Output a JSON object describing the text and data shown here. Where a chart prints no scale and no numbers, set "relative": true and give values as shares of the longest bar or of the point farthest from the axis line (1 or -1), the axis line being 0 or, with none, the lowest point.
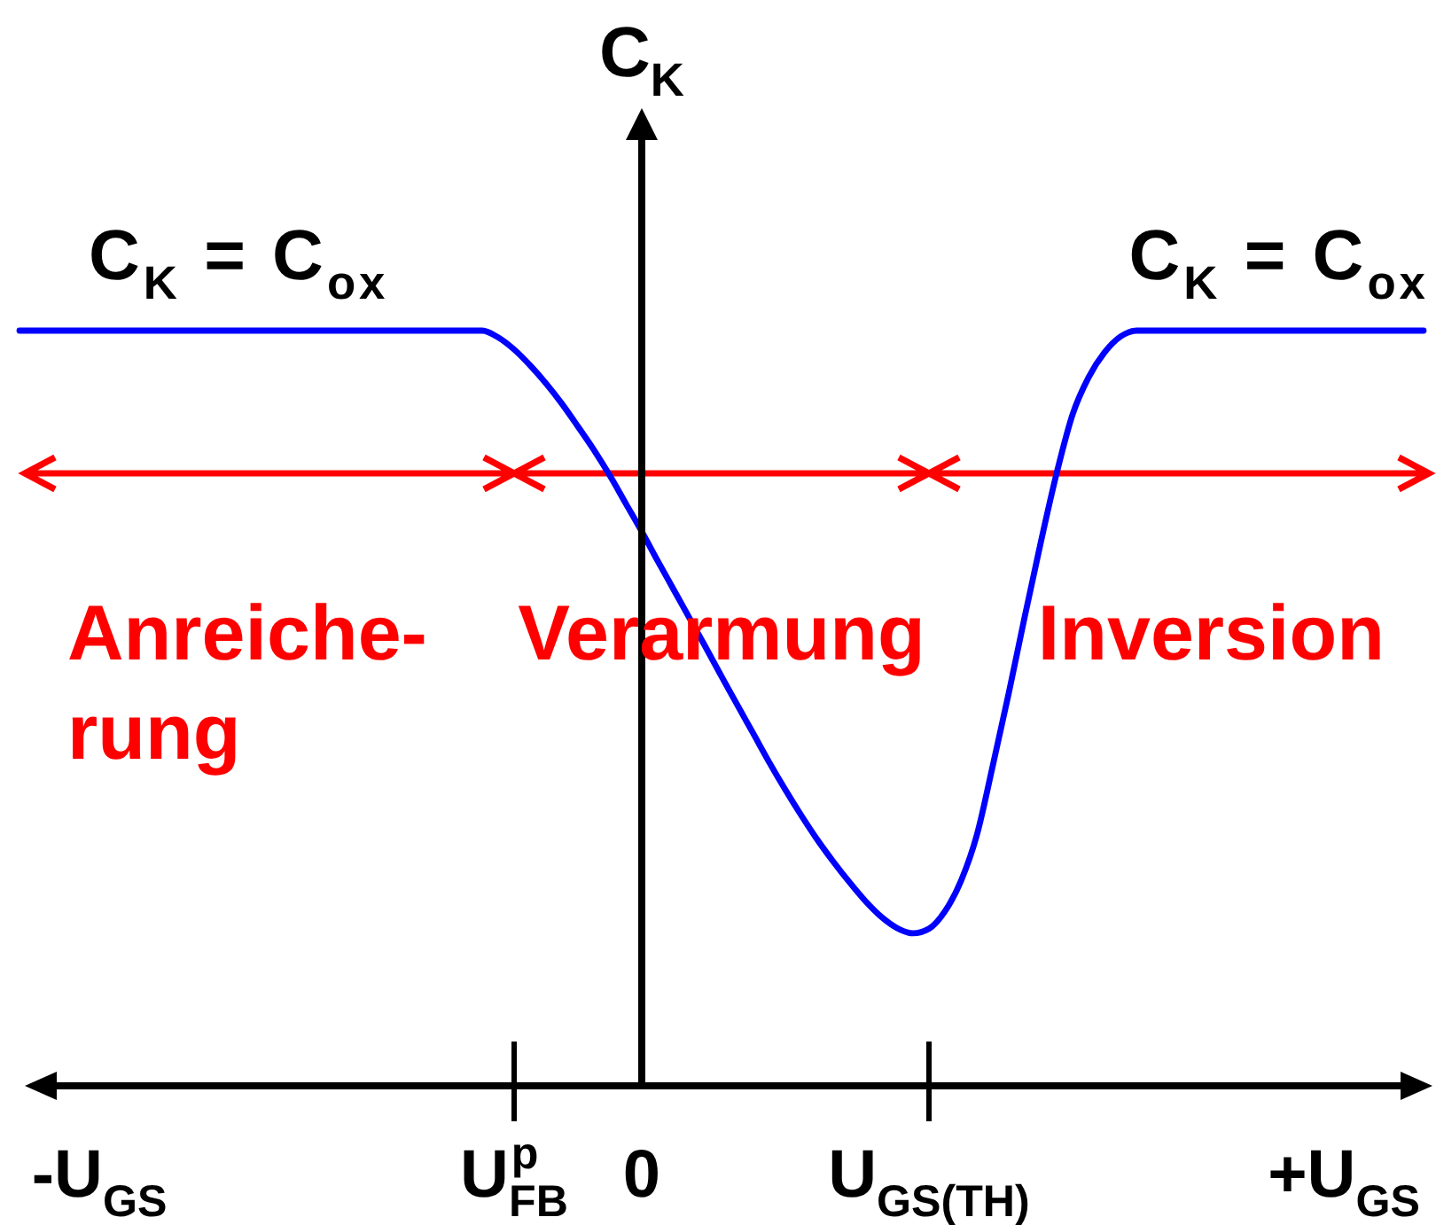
{
  "chart_data": {
    "type": "line",
    "ylabel": "C$_{K}$",
    "relative": true,
    "categories": [
      null,
      null,
      null,
      null,
      null,
      "-U$_{GS}$",
      null,
      null,
      null,
      null,
      null,
      null,
      null,
      null,
      null,
      null,
      null,
      null,
      null,
      null,
      null,
      null,
      null,
      null,
      null,
      null,
      null,
      null,
      null,
      null,
      null,
      "U$_{FB}$$^{p}$",
      null,
      null,
      null,
      null,
      null,
      null,
      null,
      "0",
      null,
      null,
      null,
      null,
      null,
      null,
      null,
      null,
      null,
      null,
      null,
      null,
      null,
      null,
      null,
      null,
      null,
      "U$_{GS(TH)}$",
      null,
      null,
      null,
      null,
      null,
      null,
      null,
      null,
      null,
      null,
      null,
      null,
      null,
      null,
      null,
      null,
      null,
      null,
      null,
      null,
      null,
      null,
      null,
      null,
      null,
      "+U$_{GS}$",
      null,
      null,
      null,
      null,
      null
    ],
    "values": [
      1,
      1,
      1,
      1,
      1,
      1,
      1,
      1,
      1,
      1,
      1,
      1,
      1,
      1,
      1,
      1,
      1,
      1,
      1,
      1,
      1,
      1,
      1,
      1,
      1,
      1,
      1,
      1,
      1,
      1,
      0.991,
      0.975,
      0.954,
      0.93,
      0.903,
      0.873,
      0.842,
      0.808,
      0.771,
      0.734,
      0.695,
      0.657,
      0.619,
      0.581,
      0.542,
      0.504,
      0.466,
      0.428,
      0.392,
      0.358,
      0.326,
      0.297,
      0.27,
      0.245,
      0.224,
      0.209,
      0.202,
      0.208,
      0.231,
      0.271,
      0.332,
      0.424,
      0.52,
      0.621,
      0.719,
      0.811,
      0.889,
      0.938,
      0.971,
      0.992,
      1,
      1,
      1,
      1,
      1,
      1,
      1,
      1,
      1,
      1,
      1,
      1,
      1,
      1,
      1,
      1,
      1,
      1,
      1
    ],
    "color": "#0000ff",
    "annotations": [
      {
        "text": "C$_{K}$ = C$_{ox}$",
        "y": 1
      },
      {
        "text": "C$_{K}$ = C$_{ox}$",
        "y": 1
      },
      "Anreiche-\nrung",
      "Verarmung",
      "Inversion"
    ]
  }
}
